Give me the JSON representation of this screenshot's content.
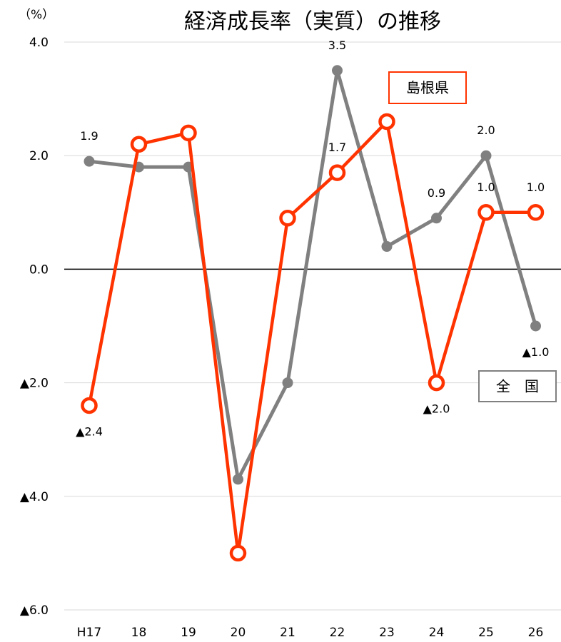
{
  "chart_data": {
    "type": "line",
    "title": "経済成長率（実質）の推移",
    "unit_label": "（%）",
    "categories": [
      "H17",
      "18",
      "19",
      "20",
      "21",
      "22",
      "23",
      "24",
      "25",
      "26"
    ],
    "y_ticks": [
      {
        "value": 4.0,
        "label": "4.0"
      },
      {
        "value": 2.0,
        "label": "2.0"
      },
      {
        "value": 0.0,
        "label": "0.0"
      },
      {
        "value": -2.0,
        "label": "▲2.0"
      },
      {
        "value": -4.0,
        "label": "▲4.0"
      },
      {
        "value": -6.0,
        "label": "▲6.0"
      }
    ],
    "ylim": [
      -6.0,
      4.0
    ],
    "grid": true,
    "series": [
      {
        "name": "全　国",
        "color": "#808080",
        "marker": "filled-circle",
        "values": [
          1.9,
          1.8,
          1.8,
          -3.7,
          -2.0,
          3.5,
          0.4,
          0.9,
          2.0,
          -1.0
        ],
        "data_labels": [
          {
            "index": 0,
            "text": "1.9",
            "position": "above"
          },
          {
            "index": 5,
            "text": "3.5",
            "position": "above"
          },
          {
            "index": 7,
            "text": "0.9",
            "position": "above"
          },
          {
            "index": 8,
            "text": "2.0",
            "position": "above"
          },
          {
            "index": 9,
            "text": "▲1.0",
            "position": "below"
          }
        ]
      },
      {
        "name": "島根県",
        "color": "#ff3300",
        "marker": "hollow-circle",
        "values": [
          -2.4,
          2.2,
          2.4,
          -5.0,
          0.9,
          1.7,
          2.6,
          -2.0,
          1.0,
          1.0
        ],
        "data_labels": [
          {
            "index": 0,
            "text": "▲2.4",
            "position": "below"
          },
          {
            "index": 5,
            "text": "1.7",
            "position": "above"
          },
          {
            "index": 7,
            "text": "▲2.0",
            "position": "below"
          },
          {
            "index": 8,
            "text": "1.0",
            "position": "above"
          },
          {
            "index": 9,
            "text": "1.0",
            "position": "above"
          }
        ]
      }
    ],
    "legend": [
      {
        "label": "島根県",
        "series": 1,
        "placement": "upper-right inside plot, above the 島根県 line"
      },
      {
        "label": "全　国",
        "series": 0,
        "placement": "lower-right inside plot, below the 全国 line"
      }
    ]
  }
}
